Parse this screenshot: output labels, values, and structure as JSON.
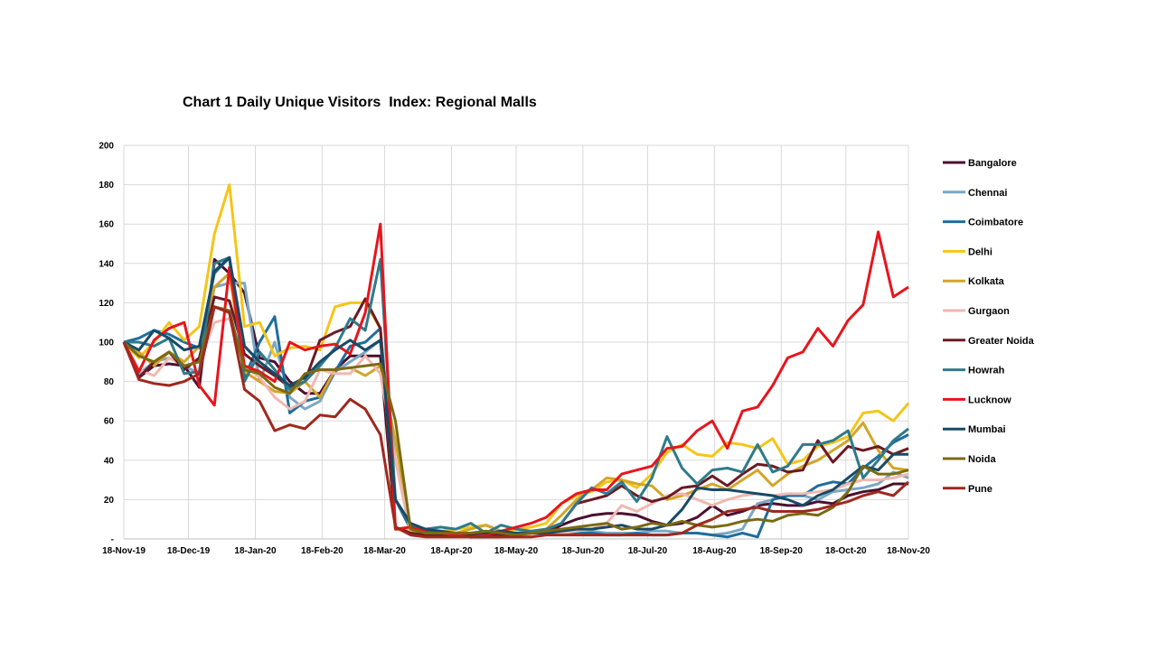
{
  "chart_data": {
    "type": "line",
    "title": "Chart 1 Daily Unique Visitors  Index: Regional Malls",
    "xlabel": "",
    "ylabel": "",
    "ylim": [
      0,
      200
    ],
    "yticks": [
      "-",
      "20",
      "40",
      "60",
      "80",
      "100",
      "120",
      "140",
      "160",
      "180",
      "200"
    ],
    "xticks": [
      "18-Nov-19",
      "18-Dec-19",
      "18-Jan-20",
      "18-Feb-20",
      "18-Mar-20",
      "18-Apr-20",
      "18-May-20",
      "18-Jun-20",
      "18-Jul-20",
      "18-Aug-20",
      "18-Sep-20",
      "18-Oct-20",
      "18-Nov-20"
    ],
    "x_note": "weekly points, 53 weeks from 18-Nov-19",
    "grid": true,
    "legend_position": "right",
    "series": [
      {
        "name": "Bangalore",
        "color": "#4b0f2e",
        "values": [
          100,
          82,
          88,
          89,
          88,
          77,
          142,
          135,
          125,
          92,
          90,
          80,
          74,
          74,
          86,
          93,
          93,
          93,
          5,
          4,
          3,
          2,
          2,
          1,
          1,
          1,
          2,
          2,
          3,
          7,
          10,
          12,
          13,
          13,
          12,
          9,
          7,
          8,
          11,
          17,
          12,
          14,
          17,
          18,
          17,
          17,
          19,
          18,
          22,
          24,
          25,
          28,
          28
        ]
      },
      {
        "name": "Chennai",
        "color": "#7ba7c2",
        "values": [
          100,
          84,
          90,
          92,
          88,
          84,
          128,
          130,
          130,
          80,
          100,
          72,
          66,
          70,
          85,
          90,
          95,
          101,
          40,
          3,
          2,
          2,
          2,
          1,
          1,
          2,
          2,
          2,
          3,
          4,
          5,
          4,
          3,
          3,
          3,
          4,
          4,
          3,
          3,
          2,
          3,
          5,
          18,
          20,
          22,
          22,
          20,
          24,
          25,
          26,
          28,
          34,
          31
        ]
      },
      {
        "name": "Coimbatore",
        "color": "#1f6e9c",
        "values": [
          100,
          102,
          106,
          104,
          100,
          97,
          135,
          143,
          82,
          100,
          113,
          64,
          70,
          72,
          85,
          98,
          100,
          107,
          20,
          5,
          4,
          4,
          3,
          3,
          4,
          3,
          3,
          3,
          3,
          3,
          3,
          3,
          2,
          2,
          3,
          2,
          2,
          3,
          3,
          2,
          1,
          3,
          1,
          20,
          22,
          22,
          27,
          29,
          28,
          36,
          42,
          49,
          53
        ]
      },
      {
        "name": "Delhi",
        "color": "#f5c518",
        "values": [
          100,
          92,
          100,
          110,
          101,
          108,
          155,
          180,
          108,
          110,
          93,
          97,
          98,
          96,
          118,
          120,
          120,
          107,
          5,
          4,
          3,
          4,
          5,
          6,
          7,
          4,
          5,
          6,
          8,
          18,
          22,
          24,
          29,
          30,
          26,
          33,
          44,
          48,
          43,
          42,
          49,
          48,
          46,
          51,
          38,
          40,
          47,
          49,
          52,
          64,
          65,
          60,
          69
        ]
      },
      {
        "name": "Kolkata",
        "color": "#d4a52a",
        "values": [
          100,
          95,
          88,
          95,
          90,
          98,
          128,
          135,
          85,
          80,
          75,
          74,
          80,
          72,
          86,
          87,
          83,
          88,
          50,
          4,
          3,
          3,
          3,
          5,
          7,
          4,
          3,
          4,
          5,
          12,
          20,
          25,
          31,
          30,
          28,
          27,
          20,
          22,
          25,
          28,
          25,
          30,
          35,
          27,
          33,
          37,
          40,
          45,
          50,
          59,
          45,
          36,
          35
        ]
      },
      {
        "name": "Gurgaon",
        "color": "#f0b8b0",
        "values": [
          100,
          86,
          83,
          92,
          88,
          90,
          110,
          112,
          88,
          82,
          72,
          66,
          70,
          86,
          84,
          84,
          93,
          84,
          40,
          3,
          2,
          2,
          2,
          2,
          1,
          1,
          1,
          2,
          2,
          3,
          4,
          5,
          8,
          17,
          14,
          18,
          22,
          23,
          20,
          17,
          20,
          22,
          23,
          22,
          23,
          23,
          24,
          25,
          28,
          30,
          30,
          31,
          33
        ]
      },
      {
        "name": "Greater Noida",
        "color": "#6b1a24",
        "values": [
          100,
          82,
          90,
          95,
          86,
          92,
          123,
          121,
          94,
          88,
          83,
          77,
          80,
          101,
          105,
          108,
          122,
          107,
          6,
          3,
          2,
          2,
          2,
          2,
          2,
          2,
          2,
          3,
          4,
          8,
          18,
          20,
          22,
          27,
          22,
          19,
          21,
          26,
          27,
          32,
          27,
          33,
          38,
          37,
          34,
          35,
          50,
          39,
          47,
          45,
          47,
          43,
          46
        ]
      },
      {
        "name": "Howrah",
        "color": "#2f7a8a",
        "values": [
          100,
          100,
          98,
          102,
          84,
          85,
          140,
          143,
          80,
          95,
          86,
          76,
          80,
          88,
          97,
          112,
          106,
          142,
          20,
          7,
          5,
          6,
          5,
          8,
          3,
          7,
          5,
          4,
          5,
          8,
          18,
          26,
          23,
          29,
          19,
          31,
          52,
          36,
          28,
          35,
          36,
          34,
          48,
          34,
          37,
          48,
          48,
          50,
          55,
          31,
          40,
          50,
          56
        ]
      },
      {
        "name": "Lucknow",
        "color": "#e8141c",
        "values": [
          100,
          85,
          101,
          107,
          110,
          78,
          68,
          138,
          88,
          85,
          80,
          100,
          96,
          98,
          99,
          94,
          115,
          160,
          5,
          6,
          4,
          3,
          2,
          1,
          2,
          4,
          6,
          8,
          11,
          18,
          23,
          25,
          25,
          33,
          35,
          37,
          46,
          47,
          55,
          60,
          46,
          65,
          67,
          78,
          92,
          95,
          107,
          98,
          111,
          119,
          156,
          123,
          128
        ]
      },
      {
        "name": "Mumbai",
        "color": "#174a66",
        "values": [
          100,
          96,
          106,
          102,
          96,
          98,
          136,
          143,
          98,
          90,
          84,
          78,
          82,
          90,
          96,
          101,
          96,
          101,
          20,
          8,
          5,
          4,
          3,
          3,
          3,
          4,
          3,
          3,
          3,
          4,
          5,
          5,
          6,
          7,
          5,
          5,
          7,
          15,
          26,
          25,
          25,
          24,
          23,
          22,
          20,
          17,
          22,
          25,
          31,
          37,
          35,
          43,
          43
        ]
      },
      {
        "name": "Noida",
        "color": "#7a6a12",
        "values": [
          100,
          93,
          90,
          95,
          88,
          90,
          118,
          116,
          86,
          84,
          77,
          74,
          84,
          86,
          86,
          87,
          88,
          89,
          60,
          5,
          3,
          3,
          3,
          3,
          4,
          3,
          2,
          3,
          4,
          5,
          6,
          7,
          8,
          5,
          6,
          8,
          7,
          9,
          7,
          6,
          7,
          9,
          10,
          9,
          12,
          13,
          12,
          16,
          24,
          37,
          33,
          33,
          35
        ]
      },
      {
        "name": "Pune",
        "color": "#a0281e",
        "values": [
          100,
          81,
          79,
          78,
          80,
          84,
          118,
          115,
          76,
          70,
          55,
          58,
          56,
          63,
          62,
          71,
          66,
          53,
          6,
          2,
          1,
          1,
          1,
          1,
          1,
          1,
          1,
          1,
          2,
          2,
          2,
          2,
          2,
          2,
          2,
          2,
          2,
          3,
          7,
          10,
          14,
          15,
          16,
          14,
          14,
          14,
          15,
          17,
          19,
          22,
          24,
          22,
          29
        ]
      }
    ]
  }
}
